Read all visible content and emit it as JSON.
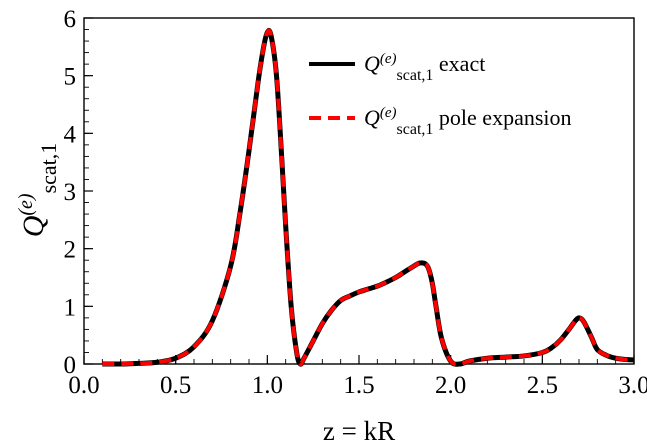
{
  "chart_data": {
    "type": "line",
    "xlabel": "z = kR",
    "ylabel": {
      "base": "Q",
      "sup": "(e)",
      "sub": "scat,1"
    },
    "xlim": [
      0.0,
      3.0
    ],
    "ylim": [
      0,
      6
    ],
    "x_ticks": [
      "0.0",
      "0.5",
      "1.0",
      "1.5",
      "2.0",
      "2.5",
      "3.0"
    ],
    "y_ticks": [
      "0",
      "1",
      "2",
      "3",
      "4",
      "5",
      "6"
    ],
    "grid": false,
    "legend_position": "top-right",
    "series": [
      {
        "legend": {
          "base": "Q",
          "sup": "(e)",
          "sub": "scat,1",
          "suffix": " exact"
        },
        "color": "#000000",
        "style": "solid",
        "x": [
          0.1,
          0.2,
          0.3,
          0.4,
          0.5,
          0.6,
          0.7,
          0.8,
          0.85,
          0.9,
          0.95,
          0.98,
          1.0,
          1.02,
          1.05,
          1.08,
          1.1,
          1.13,
          1.16,
          1.18,
          1.2,
          1.25,
          1.3,
          1.35,
          1.4,
          1.45,
          1.5,
          1.55,
          1.6,
          1.65,
          1.7,
          1.75,
          1.8,
          1.83,
          1.86,
          1.88,
          1.9,
          1.92,
          1.95,
          2.0,
          2.05,
          2.1,
          2.2,
          2.3,
          2.4,
          2.5,
          2.55,
          2.6,
          2.65,
          2.68,
          2.7,
          2.72,
          2.74,
          2.77,
          2.8,
          2.85,
          2.9,
          2.95,
          3.0
        ],
        "y": [
          0.0,
          0.0,
          0.01,
          0.03,
          0.1,
          0.3,
          0.75,
          1.7,
          2.6,
          3.7,
          4.9,
          5.5,
          5.75,
          5.7,
          5.0,
          3.5,
          2.4,
          1.0,
          0.2,
          0.0,
          0.1,
          0.4,
          0.7,
          0.93,
          1.1,
          1.18,
          1.25,
          1.3,
          1.35,
          1.42,
          1.5,
          1.6,
          1.7,
          1.75,
          1.74,
          1.65,
          1.4,
          1.0,
          0.45,
          0.05,
          0.0,
          0.05,
          0.1,
          0.12,
          0.14,
          0.2,
          0.28,
          0.42,
          0.62,
          0.75,
          0.8,
          0.76,
          0.65,
          0.45,
          0.25,
          0.15,
          0.1,
          0.08,
          0.07
        ]
      },
      {
        "legend": {
          "base": "Q",
          "sup": "(e)",
          "sub": "scat,1",
          "suffix": " pole expansion"
        },
        "color": "#ff0000",
        "style": "dashed",
        "x": [
          0.1,
          0.2,
          0.3,
          0.4,
          0.5,
          0.6,
          0.7,
          0.8,
          0.85,
          0.9,
          0.95,
          0.98,
          1.0,
          1.02,
          1.05,
          1.08,
          1.1,
          1.13,
          1.16,
          1.18,
          1.2,
          1.25,
          1.3,
          1.35,
          1.4,
          1.45,
          1.5,
          1.55,
          1.6,
          1.65,
          1.7,
          1.75,
          1.8,
          1.83,
          1.86,
          1.88,
          1.9,
          1.92,
          1.95,
          2.0,
          2.05,
          2.1,
          2.2,
          2.3,
          2.4,
          2.5,
          2.55,
          2.6,
          2.65,
          2.68,
          2.7,
          2.72,
          2.74,
          2.77,
          2.8,
          2.85,
          2.9,
          2.95,
          3.0
        ],
        "y": [
          0.0,
          0.0,
          0.01,
          0.03,
          0.1,
          0.3,
          0.75,
          1.7,
          2.6,
          3.7,
          4.9,
          5.5,
          5.75,
          5.7,
          5.0,
          3.5,
          2.4,
          1.0,
          0.2,
          0.0,
          0.1,
          0.4,
          0.7,
          0.93,
          1.1,
          1.18,
          1.25,
          1.3,
          1.35,
          1.42,
          1.5,
          1.6,
          1.7,
          1.75,
          1.74,
          1.65,
          1.4,
          1.0,
          0.45,
          0.05,
          0.0,
          0.05,
          0.1,
          0.12,
          0.14,
          0.2,
          0.28,
          0.42,
          0.62,
          0.75,
          0.8,
          0.76,
          0.65,
          0.45,
          0.25,
          0.15,
          0.1,
          0.08,
          0.07
        ]
      }
    ]
  }
}
